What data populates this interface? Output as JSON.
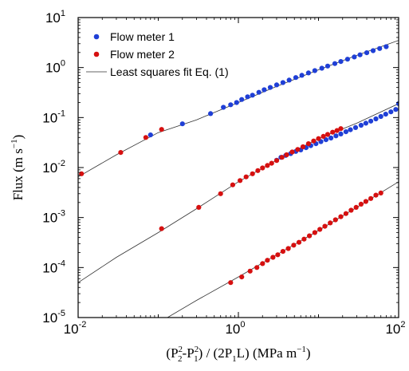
{
  "chart_data": {
    "type": "scatter",
    "xscale": "log",
    "yscale": "log",
    "xlim": [
      0.01,
      100
    ],
    "ylim": [
      1e-05,
      10
    ],
    "grid": false,
    "legend_position": "top-left",
    "xlabel": {
      "open": "(P",
      "p2_sub": "2",
      "p2_sup": "2",
      "dash": "-P",
      "p1_sub": "1",
      "p1_sup": "2",
      "mid": ") / (2P",
      "p1b_sub": "1",
      "end": "L) (MPa m",
      "unit_sup": "−1",
      "close": ")"
    },
    "ylabel": {
      "text": "Flux (m s",
      "sup": "−1",
      "close": ")"
    },
    "x_ticks": [
      {
        "value": 0.01,
        "base": "10",
        "exp": "-2"
      },
      {
        "value": 1,
        "base": "10",
        "exp": "0"
      },
      {
        "value": 100,
        "base": "10",
        "exp": "2"
      }
    ],
    "y_ticks": [
      {
        "value": 1e-05,
        "base": "10",
        "exp": "-5"
      },
      {
        "value": 0.0001,
        "base": "10",
        "exp": "-4"
      },
      {
        "value": 0.001,
        "base": "10",
        "exp": "-3"
      },
      {
        "value": 0.01,
        "base": "10",
        "exp": "-2"
      },
      {
        "value": 0.1,
        "base": "10",
        "exp": "-1"
      },
      {
        "value": 1,
        "base": "10",
        "exp": "0"
      },
      {
        "value": 10,
        "base": "10",
        "exp": "1"
      }
    ],
    "legend": [
      {
        "label": "Flow meter 1",
        "kind": "marker",
        "color": "#1f3fd6"
      },
      {
        "label": "Flow meter 2",
        "kind": "marker",
        "color": "#d61010"
      },
      {
        "label": "Least squares fit Eq. (1)",
        "kind": "line",
        "color": "#333333"
      }
    ],
    "series": [
      {
        "name": "Flow meter 1",
        "color": "#1f3fd6",
        "points": [
          {
            "x": 0.08,
            "y": 0.045
          },
          {
            "x": 0.2,
            "y": 0.075
          },
          {
            "x": 0.45,
            "y": 0.12
          },
          {
            "x": 0.65,
            "y": 0.16
          },
          {
            "x": 0.8,
            "y": 0.18
          },
          {
            "x": 0.95,
            "y": 0.2
          },
          {
            "x": 1.1,
            "y": 0.23
          },
          {
            "x": 1.3,
            "y": 0.26
          },
          {
            "x": 1.5,
            "y": 0.28
          },
          {
            "x": 1.8,
            "y": 0.32
          },
          {
            "x": 2.1,
            "y": 0.36
          },
          {
            "x": 2.5,
            "y": 0.4
          },
          {
            "x": 3,
            "y": 0.45
          },
          {
            "x": 3.6,
            "y": 0.5
          },
          {
            "x": 4.3,
            "y": 0.56
          },
          {
            "x": 5.2,
            "y": 0.63
          },
          {
            "x": 6.2,
            "y": 0.7
          },
          {
            "x": 7.5,
            "y": 0.78
          },
          {
            "x": 9,
            "y": 0.87
          },
          {
            "x": 11,
            "y": 0.97
          },
          {
            "x": 13,
            "y": 1.07
          },
          {
            "x": 16,
            "y": 1.2
          },
          {
            "x": 19,
            "y": 1.32
          },
          {
            "x": 23,
            "y": 1.47
          },
          {
            "x": 28,
            "y": 1.63
          },
          {
            "x": 33,
            "y": 1.8
          },
          {
            "x": 40,
            "y": 1.98
          },
          {
            "x": 48,
            "y": 2.18
          },
          {
            "x": 58,
            "y": 2.4
          },
          {
            "x": 70,
            "y": 2.62
          },
          {
            "x": 3,
            "y": 0.014
          },
          {
            "x": 3.4,
            "y": 0.016
          },
          {
            "x": 3.9,
            "y": 0.0175
          },
          {
            "x": 4.5,
            "y": 0.019
          },
          {
            "x": 5.2,
            "y": 0.021
          },
          {
            "x": 6,
            "y": 0.0225
          },
          {
            "x": 7,
            "y": 0.025
          },
          {
            "x": 8,
            "y": 0.0275
          },
          {
            "x": 9.3,
            "y": 0.03
          },
          {
            "x": 10.7,
            "y": 0.033
          },
          {
            "x": 12.4,
            "y": 0.036
          },
          {
            "x": 14.3,
            "y": 0.039
          },
          {
            "x": 16.5,
            "y": 0.043
          },
          {
            "x": 19,
            "y": 0.047
          },
          {
            "x": 22,
            "y": 0.052
          },
          {
            "x": 25,
            "y": 0.057
          },
          {
            "x": 29,
            "y": 0.063
          },
          {
            "x": 34,
            "y": 0.07
          },
          {
            "x": 39,
            "y": 0.077
          },
          {
            "x": 45,
            "y": 0.085
          },
          {
            "x": 52,
            "y": 0.094
          },
          {
            "x": 60,
            "y": 0.105
          },
          {
            "x": 69,
            "y": 0.117
          },
          {
            "x": 80,
            "y": 0.13
          },
          {
            "x": 92,
            "y": 0.145
          },
          {
            "x": 100,
            "y": 0.19
          }
        ]
      },
      {
        "name": "Flow meter 2",
        "color": "#d61010",
        "points": [
          {
            "x": 0.011,
            "y": 0.0075
          },
          {
            "x": 0.034,
            "y": 0.02
          },
          {
            "x": 0.07,
            "y": 0.04
          },
          {
            "x": 0.11,
            "y": 0.058
          },
          {
            "x": 0.11,
            "y": 0.0006
          },
          {
            "x": 0.32,
            "y": 0.0016
          },
          {
            "x": 0.6,
            "y": 0.003
          },
          {
            "x": 0.85,
            "y": 0.0045
          },
          {
            "x": 1.05,
            "y": 0.0055
          },
          {
            "x": 1.25,
            "y": 0.0065
          },
          {
            "x": 1.5,
            "y": 0.0075
          },
          {
            "x": 1.75,
            "y": 0.0087
          },
          {
            "x": 2,
            "y": 0.0098
          },
          {
            "x": 2.3,
            "y": 0.011
          },
          {
            "x": 2.6,
            "y": 0.0122
          },
          {
            "x": 3,
            "y": 0.0138
          },
          {
            "x": 3.5,
            "y": 0.016
          },
          {
            "x": 4,
            "y": 0.018
          },
          {
            "x": 4.7,
            "y": 0.0205
          },
          {
            "x": 5.5,
            "y": 0.023
          },
          {
            "x": 6.4,
            "y": 0.026
          },
          {
            "x": 7.5,
            "y": 0.03
          },
          {
            "x": 8.7,
            "y": 0.034
          },
          {
            "x": 10,
            "y": 0.038
          },
          {
            "x": 11.5,
            "y": 0.042
          },
          {
            "x": 13,
            "y": 0.046
          },
          {
            "x": 15,
            "y": 0.051
          },
          {
            "x": 17,
            "y": 0.055
          },
          {
            "x": 19,
            "y": 0.06
          },
          {
            "x": 0.8,
            "y": 5e-05
          },
          {
            "x": 1.1,
            "y": 6.5e-05
          },
          {
            "x": 1.4,
            "y": 8.5e-05
          },
          {
            "x": 1.7,
            "y": 0.0001
          },
          {
            "x": 2,
            "y": 0.00012
          },
          {
            "x": 2.3,
            "y": 0.00014
          },
          {
            "x": 2.7,
            "y": 0.00016
          },
          {
            "x": 3.1,
            "y": 0.00018
          },
          {
            "x": 3.6,
            "y": 0.00021
          },
          {
            "x": 4.2,
            "y": 0.00024
          },
          {
            "x": 4.9,
            "y": 0.00028
          },
          {
            "x": 5.7,
            "y": 0.00032
          },
          {
            "x": 6.6,
            "y": 0.00037
          },
          {
            "x": 7.7,
            "y": 0.00043
          },
          {
            "x": 9,
            "y": 0.0005
          },
          {
            "x": 10.4,
            "y": 0.00058
          },
          {
            "x": 12,
            "y": 0.00067
          },
          {
            "x": 14,
            "y": 0.00078
          },
          {
            "x": 16.3,
            "y": 0.0009
          },
          {
            "x": 19,
            "y": 0.00104
          },
          {
            "x": 22,
            "y": 0.0012
          },
          {
            "x": 25.5,
            "y": 0.0014
          },
          {
            "x": 29.5,
            "y": 0.0016
          },
          {
            "x": 34,
            "y": 0.00185
          },
          {
            "x": 39,
            "y": 0.0021
          },
          {
            "x": 45,
            "y": 0.0024
          },
          {
            "x": 52,
            "y": 0.0028
          },
          {
            "x": 60,
            "y": 0.0031
          }
        ]
      }
    ],
    "fit_curves": [
      {
        "name": "fit-curve-upper",
        "points": [
          {
            "x": 0.01,
            "y": 0.0065
          },
          {
            "x": 0.03,
            "y": 0.018
          },
          {
            "x": 0.1,
            "y": 0.05
          },
          {
            "x": 0.3,
            "y": 0.09
          },
          {
            "x": 1,
            "y": 0.2
          },
          {
            "x": 3,
            "y": 0.42
          },
          {
            "x": 10,
            "y": 0.9
          },
          {
            "x": 30,
            "y": 1.75
          },
          {
            "x": 100,
            "y": 3.5
          }
        ]
      },
      {
        "name": "fit-curve-middle",
        "points": [
          {
            "x": 0.01,
            "y": 5e-05
          },
          {
            "x": 0.03,
            "y": 0.00016
          },
          {
            "x": 0.1,
            "y": 0.0005
          },
          {
            "x": 0.3,
            "y": 0.0015
          },
          {
            "x": 1,
            "y": 0.0052
          },
          {
            "x": 3,
            "y": 0.014
          },
          {
            "x": 10,
            "y": 0.038
          },
          {
            "x": 30,
            "y": 0.077
          },
          {
            "x": 100,
            "y": 0.19
          }
        ]
      },
      {
        "name": "fit-curve-lower",
        "points": [
          {
            "x": 0.13,
            "y": 1e-05
          },
          {
            "x": 0.3,
            "y": 2.2e-05
          },
          {
            "x": 1,
            "y": 6.5e-05
          },
          {
            "x": 3,
            "y": 0.00018
          },
          {
            "x": 10,
            "y": 0.00055
          },
          {
            "x": 30,
            "y": 0.0016
          },
          {
            "x": 100,
            "y": 0.0052
          }
        ]
      }
    ]
  }
}
